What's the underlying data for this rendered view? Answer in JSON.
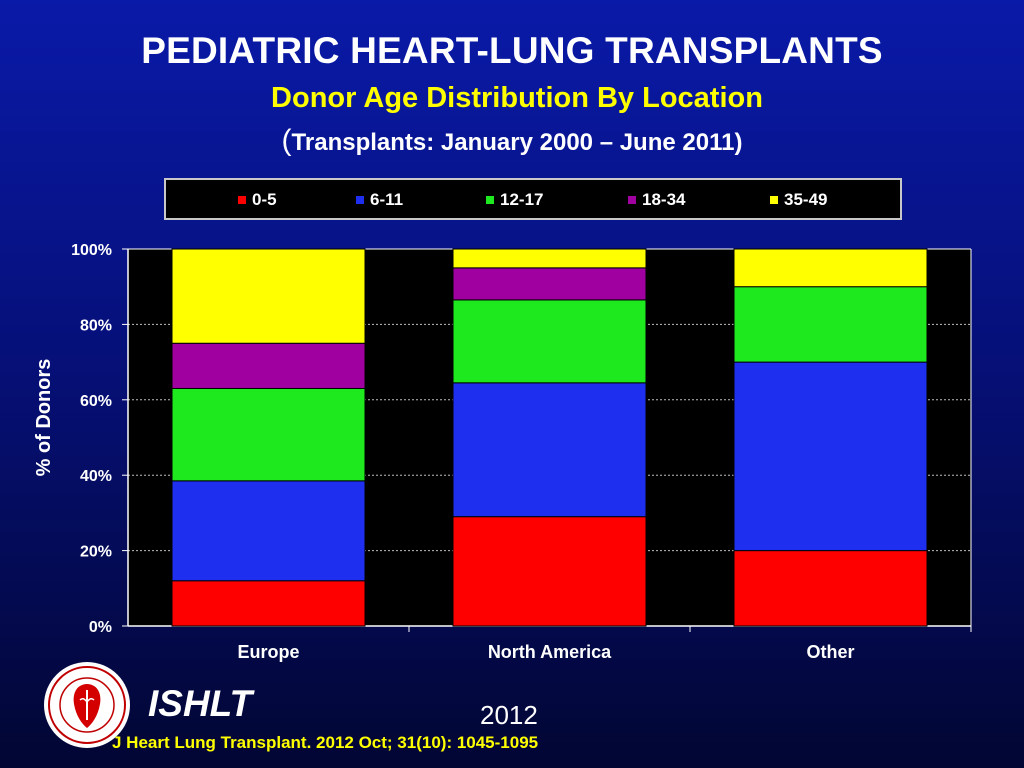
{
  "header": {
    "title": "PEDIATRIC HEART-LUNG TRANSPLANTS",
    "subtitle": "Donor Age Distribution By Location",
    "period_open": "(",
    "period_text": "Transplants: January 2000 – June 2011)"
  },
  "footer": {
    "org": "ISHLT",
    "year": "2012",
    "citation": "J Heart Lung Transplant.  2012 Oct; 31(10): 1045-1095"
  },
  "chart_data": {
    "type": "bar",
    "stacked": true,
    "title": "Donor Age Distribution By Location",
    "xlabel": "",
    "ylabel": "% of Donors",
    "ylim": [
      0,
      100
    ],
    "yticks": [
      0,
      20,
      40,
      60,
      80,
      100
    ],
    "ytick_labels": [
      "0%",
      "20%",
      "40%",
      "60%",
      "80%",
      "100%"
    ],
    "grid": true,
    "legend_position": "top",
    "categories": [
      "Europe",
      "North America",
      "Other"
    ],
    "series": [
      {
        "name": "0-5",
        "color": "#ff0000",
        "values": [
          12,
          29,
          20
        ]
      },
      {
        "name": "6-11",
        "color": "#1f2ff0",
        "values": [
          26.5,
          35.5,
          50
        ]
      },
      {
        "name": "12-17",
        "color": "#1ee81e",
        "values": [
          24.5,
          22,
          20
        ]
      },
      {
        "name": "18-34",
        "color": "#a000a0",
        "values": [
          12,
          8.5,
          0
        ]
      },
      {
        "name": "35-49",
        "color": "#ffff00",
        "values": [
          25,
          5,
          10
        ]
      }
    ]
  }
}
